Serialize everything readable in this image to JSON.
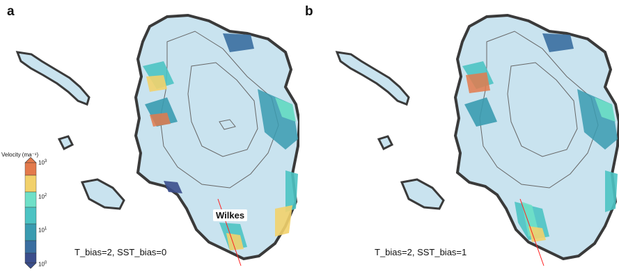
{
  "panels": [
    {
      "letter": "a",
      "label": "T_bias=2, SST_bias=0"
    },
    {
      "letter": "b",
      "label": "T_bias=2, SST_bias=1"
    }
  ],
  "colorbar": {
    "title": "Velocity (ma⁻¹)",
    "ticks": [
      {
        "base": "10",
        "exp": "3"
      },
      {
        "base": "10",
        "exp": "2"
      },
      {
        "base": "10",
        "exp": "1"
      },
      {
        "base": "10",
        "exp": "0"
      }
    ],
    "colors": [
      "#e37a4c",
      "#f2d16b",
      "#6fe0c8",
      "#4cc3c3",
      "#3a9bb0",
      "#3a6ea0",
      "#3b4e8c"
    ]
  },
  "annotation": {
    "region": "Wilkes"
  },
  "colors": {
    "interior": "#c9e3ef",
    "coast": "#3a3a3a",
    "contour": "#666666",
    "flowline": "#ff2020"
  }
}
